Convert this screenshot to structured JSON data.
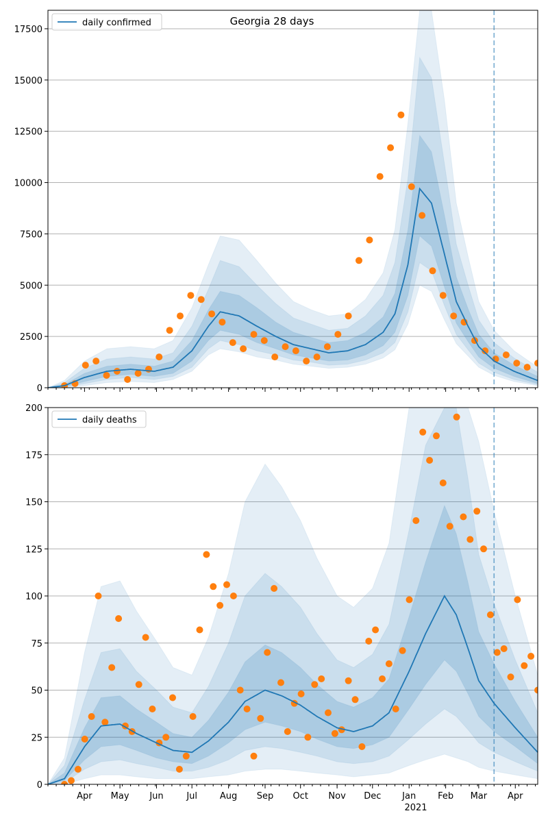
{
  "title": "Georgia 28 days",
  "colors": {
    "line": "#1f77b4",
    "points": "#ff7f0e",
    "band": "#1f77b4",
    "grid": "#b0b0b0",
    "marker": "#1f77b4"
  },
  "x_axis": {
    "months": [
      "Apr",
      "May",
      "Jun",
      "Jul",
      "Aug",
      "Sep",
      "Oct",
      "Nov",
      "Dec",
      "Jan",
      "Feb",
      "Mar",
      "Apr"
    ],
    "year_label": "2021",
    "range": [
      "2020-03-01",
      "2021-04-20"
    ],
    "forecast_start": "2021-03-14"
  },
  "chart_data": [
    {
      "type": "line",
      "panel": "top",
      "legend": [
        "daily confirmed"
      ],
      "legend_position": "upper left",
      "grid": "horizontal",
      "ylim": [
        0,
        18400
      ],
      "yticks": [
        0,
        2500,
        5000,
        7500,
        10000,
        12500,
        15000,
        17500
      ],
      "series": [
        {
          "name": "daily confirmed",
          "x": [
            "2020-03-01",
            "2020-03-15",
            "2020-04-01",
            "2020-04-20",
            "2020-05-10",
            "2020-05-30",
            "2020-06-15",
            "2020-07-01",
            "2020-07-15",
            "2020-07-25",
            "2020-08-10",
            "2020-08-25",
            "2020-09-10",
            "2020-09-25",
            "2020-10-10",
            "2020-10-25",
            "2020-11-10",
            "2020-11-25",
            "2020-12-10",
            "2020-12-20",
            "2020-12-31",
            "2021-01-10",
            "2021-01-20",
            "2021-01-31",
            "2021-02-10",
            "2021-02-20",
            "2021-03-01",
            "2021-03-14",
            "2021-03-31",
            "2021-04-20"
          ],
          "y": [
            0,
            100,
            500,
            800,
            900,
            800,
            1000,
            1800,
            3000,
            3700,
            3500,
            3000,
            2500,
            2100,
            1900,
            1700,
            1800,
            2100,
            2700,
            3600,
            6000,
            9700,
            9000,
            6500,
            4200,
            3000,
            2000,
            1300,
            800,
            350
          ],
          "band_inner": [
            [
              0,
              0
            ],
            [
              50,
              150
            ],
            [
              300,
              700
            ],
            [
              550,
              1050
            ],
            [
              650,
              1150
            ],
            [
              550,
              1050
            ],
            [
              700,
              1300
            ],
            [
              1300,
              2300
            ],
            [
              2300,
              3800
            ],
            [
              2800,
              4700
            ],
            [
              2600,
              4500
            ],
            [
              2200,
              3900
            ],
            [
              1900,
              3200
            ],
            [
              1600,
              2700
            ],
            [
              1450,
              2450
            ],
            [
              1300,
              2200
            ],
            [
              1350,
              2300
            ],
            [
              1600,
              2700
            ],
            [
              2050,
              3450
            ],
            [
              2700,
              4600
            ],
            [
              4500,
              7700
            ],
            [
              7400,
              12300
            ],
            [
              6900,
              11500
            ],
            [
              4900,
              8400
            ],
            [
              3150,
              5400
            ],
            [
              2250,
              3850
            ],
            [
              1500,
              2600
            ],
            [
              950,
              1700
            ],
            [
              550,
              1100
            ],
            [
              200,
              550
            ]
          ],
          "band_mid": [
            [
              0,
              0
            ],
            [
              20,
              250
            ],
            [
              200,
              950
            ],
            [
              400,
              1400
            ],
            [
              500,
              1500
            ],
            [
              400,
              1400
            ],
            [
              550,
              1700
            ],
            [
              1000,
              3000
            ],
            [
              1900,
              4800
            ],
            [
              2300,
              6200
            ],
            [
              2100,
              5900
            ],
            [
              1800,
              5000
            ],
            [
              1600,
              4100
            ],
            [
              1350,
              3400
            ],
            [
              1250,
              3100
            ],
            [
              1100,
              2800
            ],
            [
              1150,
              2900
            ],
            [
              1350,
              3500
            ],
            [
              1700,
              4500
            ],
            [
              2200,
              6100
            ],
            [
              3700,
              10200
            ],
            [
              6100,
              16100
            ],
            [
              5700,
              15100
            ],
            [
              4000,
              10900
            ],
            [
              2600,
              7000
            ],
            [
              1850,
              5000
            ],
            [
              1200,
              3300
            ],
            [
              750,
              2200
            ],
            [
              400,
              1450
            ],
            [
              150,
              750
            ]
          ],
          "band_outer": [
            [
              0,
              0
            ],
            [
              0,
              350
            ],
            [
              100,
              1300
            ],
            [
              250,
              1900
            ],
            [
              300,
              2000
            ],
            [
              250,
              1900
            ],
            [
              400,
              2300
            ],
            [
              800,
              3900
            ],
            [
              1600,
              6000
            ],
            [
              1900,
              7400
            ],
            [
              1750,
              7200
            ],
            [
              1500,
              6200
            ],
            [
              1350,
              5100
            ],
            [
              1150,
              4200
            ],
            [
              1050,
              3800
            ],
            [
              950,
              3500
            ],
            [
              1000,
              3600
            ],
            [
              1150,
              4300
            ],
            [
              1450,
              5600
            ],
            [
              1850,
              7700
            ],
            [
              3100,
              12900
            ],
            [
              5000,
              18400
            ],
            [
              4700,
              18400
            ],
            [
              3300,
              14000
            ],
            [
              2150,
              9000
            ],
            [
              1550,
              6400
            ],
            [
              1000,
              4200
            ],
            [
              600,
              2800
            ],
            [
              300,
              1800
            ],
            [
              100,
              1000
            ]
          ],
          "observed": [
            100,
            200,
            1100,
            1300,
            600,
            800,
            400,
            700,
            900,
            1500,
            2800,
            3500,
            4500,
            4300,
            3600,
            3200,
            2200,
            1900,
            2600,
            2300,
            1500,
            2000,
            1800,
            1300,
            1500,
            2000,
            2600,
            3500,
            6200,
            7200,
            10300,
            11700,
            13300,
            9800,
            8400,
            5700,
            4500,
            3500,
            3200,
            2300,
            1800,
            1400,
            1600,
            1200,
            1000,
            1200
          ]
        }
      ]
    },
    {
      "type": "line",
      "panel": "bottom",
      "legend": [
        "daily deaths"
      ],
      "legend_position": "upper left",
      "grid": "horizontal",
      "ylim": [
        0,
        200
      ],
      "yticks": [
        0,
        25,
        50,
        75,
        100,
        125,
        150,
        175,
        200
      ],
      "series": [
        {
          "name": "daily deaths",
          "x": [
            "2020-03-01",
            "2020-03-15",
            "2020-04-01",
            "2020-04-15",
            "2020-05-01",
            "2020-05-15",
            "2020-06-01",
            "2020-06-15",
            "2020-07-01",
            "2020-07-15",
            "2020-08-01",
            "2020-08-15",
            "2020-09-01",
            "2020-09-15",
            "2020-10-01",
            "2020-10-15",
            "2020-11-01",
            "2020-11-15",
            "2020-12-01",
            "2020-12-15",
            "2021-01-01",
            "2021-01-15",
            "2021-01-31",
            "2021-02-10",
            "2021-02-20",
            "2021-03-01",
            "2021-03-14",
            "2021-04-01",
            "2021-04-20"
          ],
          "y": [
            0,
            3,
            20,
            31,
            32,
            27,
            22,
            18,
            17,
            23,
            33,
            44,
            50,
            47,
            42,
            36,
            30,
            28,
            31,
            38,
            60,
            80,
            100,
            90,
            72,
            55,
            43,
            30,
            17
          ],
          "band_inner": [
            [
              0,
              0
            ],
            [
              2,
              6
            ],
            [
              13,
              30
            ],
            [
              20,
              46
            ],
            [
              21,
              47
            ],
            [
              18,
              40
            ],
            [
              14,
              33
            ],
            [
              12,
              27
            ],
            [
              11,
              25
            ],
            [
              15,
              34
            ],
            [
              22,
              49
            ],
            [
              29,
              65
            ],
            [
              33,
              74
            ],
            [
              31,
              70
            ],
            [
              28,
              62
            ],
            [
              24,
              53
            ],
            [
              20,
              44
            ],
            [
              19,
              41
            ],
            [
              21,
              46
            ],
            [
              25,
              56
            ],
            [
              40,
              89
            ],
            [
              53,
              118
            ],
            [
              66,
              148
            ],
            [
              60,
              133
            ],
            [
              48,
              107
            ],
            [
              36,
              81
            ],
            [
              28,
              64
            ],
            [
              20,
              44
            ],
            [
              11,
              25
            ]
          ],
          "band_mid": [
            [
              0,
              0
            ],
            [
              1,
              10
            ],
            [
              8,
              45
            ],
            [
              12,
              70
            ],
            [
              13,
              72
            ],
            [
              11,
              60
            ],
            [
              9,
              50
            ],
            [
              7,
              41
            ],
            [
              7,
              38
            ],
            [
              9,
              52
            ],
            [
              13,
              75
            ],
            [
              18,
              100
            ],
            [
              20,
              112
            ],
            [
              19,
              105
            ],
            [
              17,
              94
            ],
            [
              15,
              80
            ],
            [
              12,
              66
            ],
            [
              11,
              62
            ],
            [
              12,
              69
            ],
            [
              15,
              85
            ],
            [
              24,
              135
            ],
            [
              32,
              180
            ],
            [
              40,
              200
            ],
            [
              36,
              200
            ],
            [
              29,
              162
            ],
            [
              22,
              122
            ],
            [
              17,
              96
            ],
            [
              12,
              66
            ],
            [
              7,
              38
            ]
          ],
          "band_outer": [
            [
              0,
              0
            ],
            [
              0,
              14
            ],
            [
              3,
              70
            ],
            [
              5,
              105
            ],
            [
              5,
              108
            ],
            [
              4,
              92
            ],
            [
              3,
              76
            ],
            [
              3,
              62
            ],
            [
              3,
              58
            ],
            [
              4,
              78
            ],
            [
              5,
              112
            ],
            [
              7,
              150
            ],
            [
              8,
              170
            ],
            [
              8,
              158
            ],
            [
              7,
              140
            ],
            [
              6,
              120
            ],
            [
              5,
              100
            ],
            [
              4,
              94
            ],
            [
              5,
              104
            ],
            [
              6,
              128
            ],
            [
              10,
              200
            ],
            [
              13,
              200
            ],
            [
              16,
              200
            ],
            [
              14,
              200
            ],
            [
              12,
              200
            ],
            [
              9,
              182
            ],
            [
              7,
              145
            ],
            [
              5,
              100
            ],
            [
              3,
              58
            ]
          ],
          "observed": [
            0,
            2,
            8,
            24,
            36,
            100,
            33,
            62,
            88,
            31,
            28,
            53,
            78,
            40,
            22,
            25,
            46,
            8,
            15,
            36,
            82,
            122,
            105,
            95,
            106,
            100,
            50,
            40,
            15,
            35,
            70,
            104,
            54,
            28,
            43,
            48,
            25,
            53,
            56,
            38,
            27,
            29,
            55,
            45,
            20,
            76,
            82,
            56,
            64,
            40,
            71,
            98,
            140,
            187,
            172,
            185,
            160,
            137,
            195,
            142,
            130,
            145,
            125,
            90,
            70,
            72,
            57,
            98,
            63,
            68,
            50
          ]
        }
      ]
    }
  ]
}
